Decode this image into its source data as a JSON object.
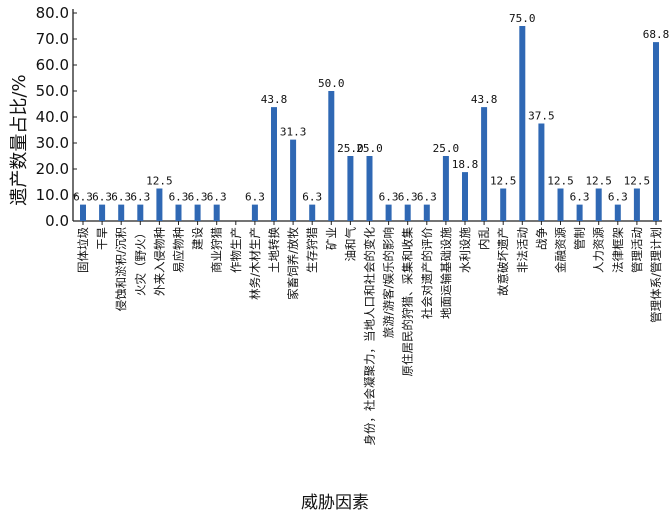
{
  "chart_data": {
    "type": "bar",
    "ylabel": "遗产数量占比/%",
    "xlabel": "威胁因素",
    "ylim": [
      0,
      80
    ],
    "yticks": [
      0,
      10,
      20,
      30,
      40,
      50,
      60,
      70,
      80
    ],
    "ytick_labels": [
      "0.0",
      "10.0",
      "20.0",
      "30.0",
      "40.0",
      "50.0",
      "60.0",
      "70.0",
      "80.0"
    ],
    "grid": false,
    "bar_color": "#2f68b4",
    "categories": [
      "固体垃圾",
      "干旱",
      "侵蚀和淤积/沉积",
      "火灾（野火）",
      "外来入侵物种",
      "易应物种",
      "建设",
      "商业狩猎",
      "作物生产",
      "林务/木材生产",
      "土地转换",
      "家畜饲养/放牧",
      "生存狩猎",
      "矿业",
      "油和气",
      "身份，社会凝聚力，当地人口和社会的变化",
      "旅游/游客/娱乐的影响",
      "原住居民的狩猎、采集和收集",
      "社会对遗产的评价",
      "地面运输基础设施",
      "水利设施",
      "内乱",
      "故意破坏遗产",
      "非法活动",
      "战争",
      "金融资源",
      "管制",
      "人力资源",
      "法律框架",
      "管理活动",
      "管理体系/管理计划"
    ],
    "values": [
      6.3,
      6.3,
      6.3,
      6.3,
      12.5,
      6.3,
      6.3,
      6.3,
      0,
      6.3,
      43.8,
      31.3,
      6.3,
      50.0,
      25.0,
      25.0,
      6.3,
      6.3,
      6.3,
      25.0,
      18.8,
      43.8,
      12.5,
      75.0,
      37.5,
      12.5,
      6.3,
      12.5,
      6.3,
      12.5,
      68.8
    ],
    "value_labels": [
      "6.3",
      "6.3",
      "6.3",
      "6.3",
      "12.5",
      "6.3",
      "6.3",
      "6.3",
      "",
      "6.3",
      "43.8",
      "31.3",
      "6.3",
      "50.0",
      "25.0",
      "25.0",
      "6.3",
      "6.3",
      "6.3",
      "25.0",
      "18.8",
      "43.8",
      "12.5",
      "75.0",
      "37.5",
      "12.5",
      "6.3",
      "12.5",
      "6.3",
      "12.5",
      "68.8"
    ]
  }
}
